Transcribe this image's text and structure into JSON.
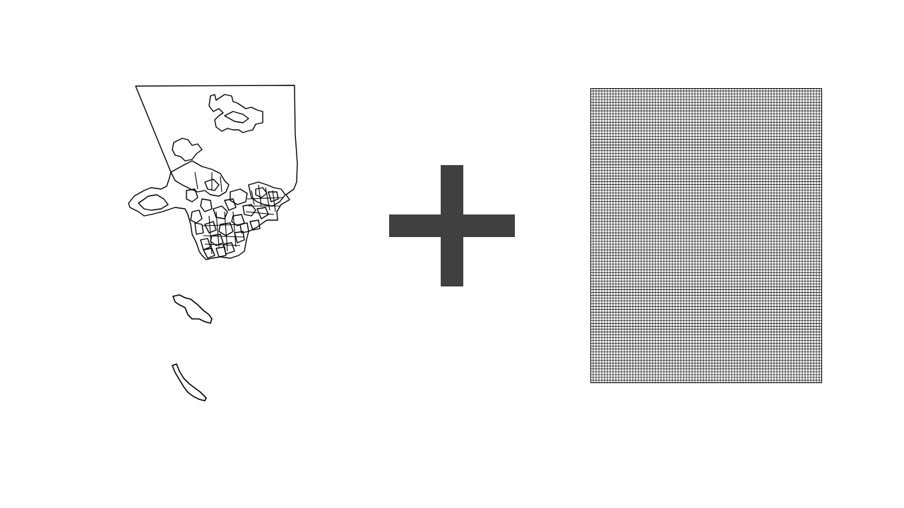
{
  "slide": {
    "background_color": "#ffffff"
  },
  "county_map": {
    "icon": "county-boundary-map",
    "stroke_color": "#000000",
    "fill_color": "#ffffff"
  },
  "plus": {
    "icon": "plus-sign",
    "color": "#404040"
  },
  "grid": {
    "icon": "fishnet-grid",
    "columns": 82,
    "rows": 104,
    "line_color": "#000000",
    "fill_color": "#ffffff"
  }
}
